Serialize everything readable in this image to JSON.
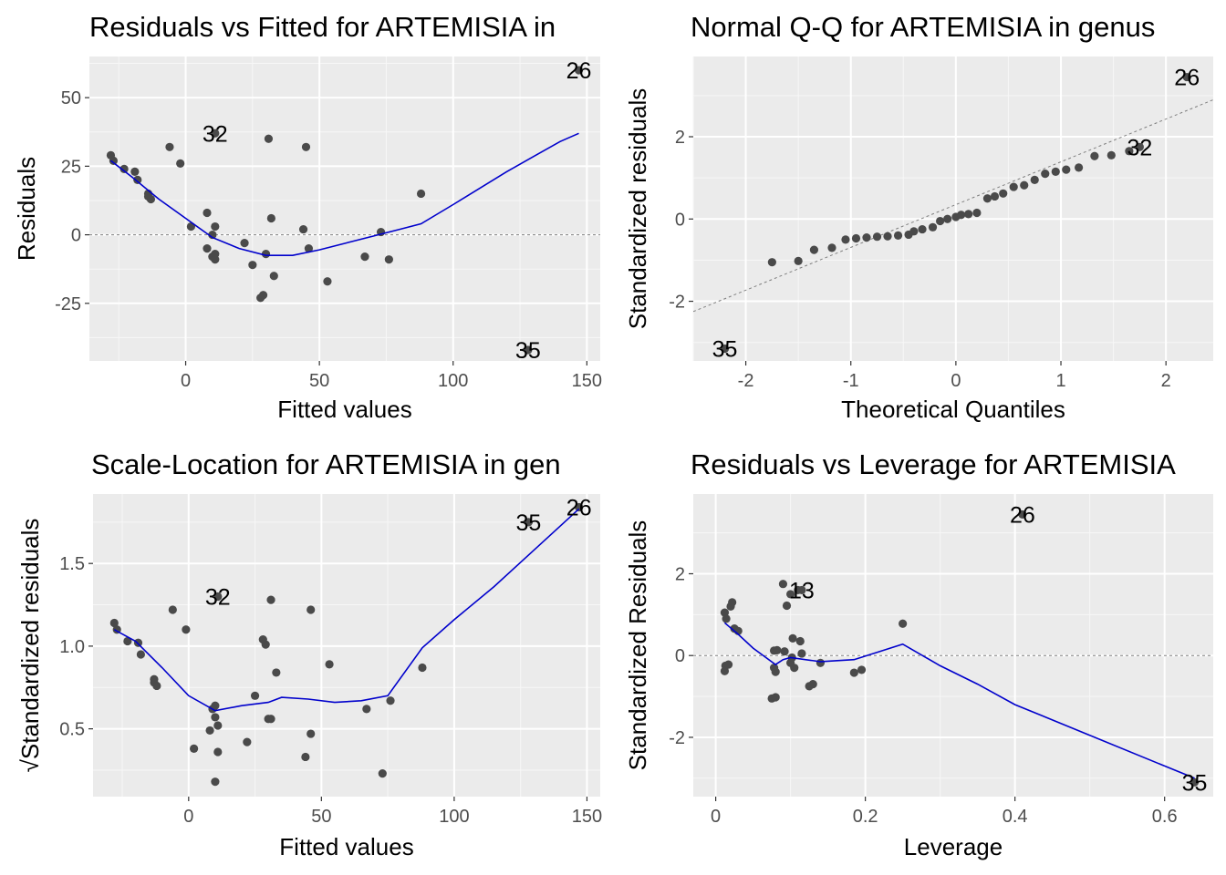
{
  "chart_data": [
    {
      "id": "p1",
      "type": "scatter",
      "title": "Residuals vs Fitted for ARTEMISIA in",
      "xlabel": "Fitted values",
      "ylabel": "Residuals",
      "xlim": [
        -36,
        155
      ],
      "ylim": [
        -46,
        65
      ],
      "xticks": [
        0,
        50,
        100,
        150
      ],
      "yticks": [
        -25,
        0,
        25,
        50
      ],
      "hline": 0,
      "grid": true,
      "points": [
        [
          -28,
          29
        ],
        [
          -27,
          27
        ],
        [
          -23,
          24
        ],
        [
          -19,
          23
        ],
        [
          -18,
          20
        ],
        [
          -14,
          15
        ],
        [
          -14,
          14
        ],
        [
          -13,
          13
        ],
        [
          -6,
          32
        ],
        [
          -2,
          26
        ],
        [
          2,
          3
        ],
        [
          8,
          8
        ],
        [
          8,
          -5
        ],
        [
          10,
          0
        ],
        [
          10,
          -8
        ],
        [
          11,
          -9
        ],
        [
          11,
          3
        ],
        [
          11,
          -7
        ],
        [
          22,
          -3
        ],
        [
          25,
          -11
        ],
        [
          28,
          -23
        ],
        [
          29,
          -22
        ],
        [
          30,
          -7
        ],
        [
          31,
          35
        ],
        [
          32,
          6
        ],
        [
          33,
          -15
        ],
        [
          44,
          2
        ],
        [
          45,
          32
        ],
        [
          46,
          -5
        ],
        [
          53,
          -17
        ],
        [
          67,
          -8
        ],
        [
          73,
          1
        ],
        [
          76,
          -9
        ],
        [
          88,
          15
        ]
      ],
      "labeled_points": [
        {
          "label": "26",
          "x": 147,
          "y": 60
        },
        {
          "label": "32",
          "x": 11,
          "y": 37
        },
        {
          "label": "35",
          "x": 128,
          "y": -42
        }
      ],
      "smooth": [
        [
          -28,
          27
        ],
        [
          -20,
          21
        ],
        [
          -10,
          13
        ],
        [
          0,
          6
        ],
        [
          10,
          -1
        ],
        [
          20,
          -5
        ],
        [
          30,
          -7.5
        ],
        [
          40,
          -7.5
        ],
        [
          50,
          -5.5
        ],
        [
          60,
          -3
        ],
        [
          70,
          -0.5
        ],
        [
          80,
          2
        ],
        [
          88,
          4
        ],
        [
          100,
          11
        ],
        [
          110,
          17
        ],
        [
          120,
          23
        ],
        [
          130,
          28.5
        ],
        [
          140,
          34
        ],
        [
          147,
          37
        ]
      ]
    },
    {
      "id": "p2",
      "type": "scatter",
      "title": "Normal Q-Q for ARTEMISIA in genus",
      "xlabel": "Theoretical Quantiles",
      "ylabel": "Standardized residuals",
      "xlim": [
        -2.5,
        2.45
      ],
      "ylim": [
        -3.45,
        3.95
      ],
      "xticks": [
        -2,
        -1,
        0,
        1,
        2
      ],
      "yticks": [
        -2,
        0,
        2
      ],
      "ref_line": {
        "slope": 1.04,
        "intercept": 0.35
      },
      "grid": true,
      "points": [
        [
          -1.75,
          -1.05
        ],
        [
          -1.5,
          -1.02
        ],
        [
          -1.35,
          -0.75
        ],
        [
          -1.18,
          -0.7
        ],
        [
          -1.05,
          -0.5
        ],
        [
          -0.95,
          -0.47
        ],
        [
          -0.85,
          -0.45
        ],
        [
          -0.75,
          -0.43
        ],
        [
          -0.65,
          -0.42
        ],
        [
          -0.55,
          -0.4
        ],
        [
          -0.45,
          -0.38
        ],
        [
          -0.4,
          -0.3
        ],
        [
          -0.32,
          -0.25
        ],
        [
          -0.22,
          -0.2
        ],
        [
          -0.15,
          -0.05
        ],
        [
          -0.08,
          0.0
        ],
        [
          0.0,
          0.05
        ],
        [
          0.05,
          0.1
        ],
        [
          0.12,
          0.12
        ],
        [
          0.2,
          0.15
        ],
        [
          0.3,
          0.5
        ],
        [
          0.37,
          0.55
        ],
        [
          0.45,
          0.62
        ],
        [
          0.55,
          0.78
        ],
        [
          0.65,
          0.82
        ],
        [
          0.75,
          0.95
        ],
        [
          0.85,
          1.1
        ],
        [
          0.95,
          1.15
        ],
        [
          1.05,
          1.2
        ],
        [
          1.17,
          1.25
        ],
        [
          1.32,
          1.53
        ],
        [
          1.48,
          1.55
        ],
        [
          1.65,
          1.65
        ]
      ],
      "labeled_points": [
        {
          "label": "26",
          "x": 2.2,
          "y": 3.45
        },
        {
          "label": "32",
          "x": 1.75,
          "y": 1.75
        },
        {
          "label": "35",
          "x": -2.2,
          "y": -3.15
        }
      ]
    },
    {
      "id": "p3",
      "type": "scatter",
      "title": "Scale-Location for ARTEMISIA in gen",
      "xlabel": "Fitted values",
      "ylabel": "√Standardized residuals",
      "xlim": [
        -36,
        155
      ],
      "ylim": [
        0.09,
        1.92
      ],
      "xticks": [
        0,
        50,
        100,
        150
      ],
      "yticks": [
        0.5,
        1.0,
        1.5
      ],
      "grid": true,
      "points": [
        [
          -28,
          1.14
        ],
        [
          -27,
          1.1
        ],
        [
          -23,
          1.03
        ],
        [
          -19,
          1.02
        ],
        [
          -18,
          0.95
        ],
        [
          -13,
          0.8
        ],
        [
          -13,
          0.78
        ],
        [
          -12,
          0.76
        ],
        [
          -6,
          1.22
        ],
        [
          -1,
          1.1
        ],
        [
          2,
          0.38
        ],
        [
          8,
          0.49
        ],
        [
          9,
          0.62
        ],
        [
          10,
          0.64
        ],
        [
          10,
          0.57
        ],
        [
          11,
          0.52
        ],
        [
          11,
          0.36
        ],
        [
          10,
          0.18
        ],
        [
          22,
          0.42
        ],
        [
          25,
          0.7
        ],
        [
          28,
          1.04
        ],
        [
          29,
          1.01
        ],
        [
          30,
          0.56
        ],
        [
          31,
          0.56
        ],
        [
          31,
          1.28
        ],
        [
          33,
          0.84
        ],
        [
          44,
          0.33
        ],
        [
          46,
          0.47
        ],
        [
          46,
          1.22
        ],
        [
          53,
          0.89
        ],
        [
          67,
          0.62
        ],
        [
          73,
          0.23
        ],
        [
          76,
          0.67
        ],
        [
          88,
          0.87
        ]
      ],
      "labeled_points": [
        {
          "label": "26",
          "x": 147,
          "y": 1.84
        },
        {
          "label": "35",
          "x": 128,
          "y": 1.75
        },
        {
          "label": "32",
          "x": 11,
          "y": 1.3
        }
      ],
      "smooth": [
        [
          -28,
          1.1
        ],
        [
          -20,
          1.03
        ],
        [
          -10,
          0.87
        ],
        [
          0,
          0.7
        ],
        [
          10,
          0.61
        ],
        [
          20,
          0.64
        ],
        [
          30,
          0.66
        ],
        [
          35,
          0.69
        ],
        [
          45,
          0.68
        ],
        [
          55,
          0.66
        ],
        [
          65,
          0.67
        ],
        [
          75,
          0.7
        ],
        [
          88,
          0.99
        ],
        [
          100,
          1.16
        ],
        [
          115,
          1.36
        ],
        [
          130,
          1.58
        ],
        [
          147,
          1.83
        ]
      ]
    },
    {
      "id": "p4",
      "type": "scatter",
      "title": "Residuals vs Leverage for ARTEMISIA",
      "xlabel": "Leverage",
      "ylabel": "Standardized Residuals",
      "xlim": [
        -0.03,
        0.665
      ],
      "ylim": [
        -3.45,
        3.95
      ],
      "xticks": [
        0.0,
        0.2,
        0.4,
        0.6
      ],
      "yticks": [
        -2,
        0,
        2
      ],
      "hline": 0,
      "grid": true,
      "points": [
        [
          0.012,
          1.05
        ],
        [
          0.014,
          0.9
        ],
        [
          0.013,
          -0.25
        ],
        [
          0.012,
          -0.38
        ],
        [
          0.017,
          -0.22
        ],
        [
          0.02,
          1.2
        ],
        [
          0.022,
          1.3
        ],
        [
          0.025,
          0.66
        ],
        [
          0.03,
          0.6
        ],
        [
          0.075,
          -1.05
        ],
        [
          0.08,
          -1.02
        ],
        [
          0.078,
          -0.3
        ],
        [
          0.08,
          -0.4
        ],
        [
          0.078,
          0.12
        ],
        [
          0.082,
          0.13
        ],
        [
          0.09,
          1.75
        ],
        [
          0.095,
          1.22
        ],
        [
          0.092,
          0.1
        ],
        [
          0.1,
          -0.18
        ],
        [
          0.1,
          1.5
        ],
        [
          0.103,
          0.42
        ],
        [
          0.105,
          -0.3
        ],
        [
          0.11,
          1.6
        ],
        [
          0.113,
          0.35
        ],
        [
          0.125,
          -0.75
        ],
        [
          0.13,
          -0.7
        ],
        [
          0.14,
          -0.18
        ],
        [
          0.185,
          -0.42
        ],
        [
          0.195,
          -0.35
        ],
        [
          0.25,
          0.78
        ],
        [
          0.102,
          -0.05
        ],
        [
          0.115,
          0.05
        ]
      ],
      "labeled_points": [
        {
          "label": "26",
          "x": 0.41,
          "y": 3.45
        },
        {
          "label": "13",
          "x": 0.115,
          "y": 1.6
        },
        {
          "label": "35",
          "x": 0.64,
          "y": -3.1
        }
      ],
      "smooth": [
        [
          0.012,
          0.8
        ],
        [
          0.03,
          0.52
        ],
        [
          0.05,
          0.18
        ],
        [
          0.08,
          -0.22
        ],
        [
          0.09,
          -0.1
        ],
        [
          0.1,
          -0.05
        ],
        [
          0.14,
          -0.15
        ],
        [
          0.185,
          -0.1
        ],
        [
          0.25,
          0.28
        ],
        [
          0.3,
          -0.25
        ],
        [
          0.35,
          -0.7
        ],
        [
          0.4,
          -1.2
        ],
        [
          0.5,
          -1.95
        ],
        [
          0.6,
          -2.7
        ],
        [
          0.64,
          -3.0
        ]
      ]
    }
  ]
}
